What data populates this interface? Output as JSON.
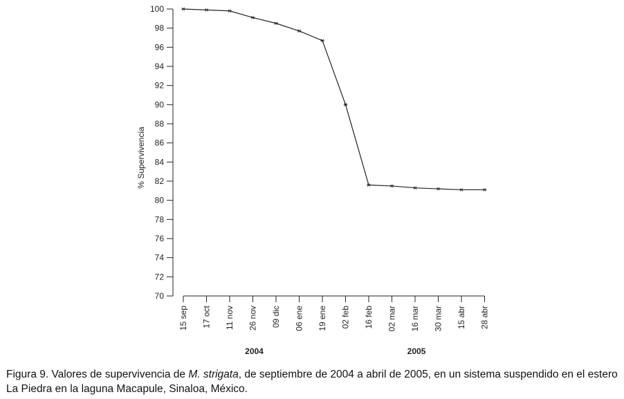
{
  "chart_data": {
    "type": "line",
    "ylabel": "% Supervivencia",
    "xlabel": "",
    "ylim": [
      70,
      100
    ],
    "yticks": [
      70,
      72,
      74,
      76,
      78,
      80,
      82,
      84,
      86,
      88,
      90,
      92,
      94,
      96,
      98,
      100
    ],
    "categories": [
      "15 sep",
      "17 oct",
      "11 nov",
      "26 nov",
      "09 dic",
      "06 ene",
      "19 ene",
      "02 feb",
      "16 feb",
      "02 mar",
      "16 mar",
      "30 mar",
      "15 abr",
      "28 abr"
    ],
    "series": [
      {
        "values": [
          100,
          99.9,
          99.8,
          99.1,
          98.5,
          97.7,
          96.7,
          90,
          81.6,
          81.5,
          81.3,
          81.2,
          81.1,
          81.1
        ]
      }
    ],
    "year_groups": [
      {
        "label": "2004",
        "from": 0,
        "to": 6
      },
      {
        "label": "2005",
        "from": 7,
        "to": 13
      }
    ],
    "grid": false,
    "line_color": "#222222",
    "marker": "asterisk"
  },
  "caption": {
    "prefix": "Figura 9. Valores de supervivencia de ",
    "species": "M. strigata",
    "suffix": ", de septiembre de 2004 a abril de 2005, en un sistema suspendido en el estero",
    "line2": "La Piedra en la laguna Macapule, Sinaloa, México."
  }
}
